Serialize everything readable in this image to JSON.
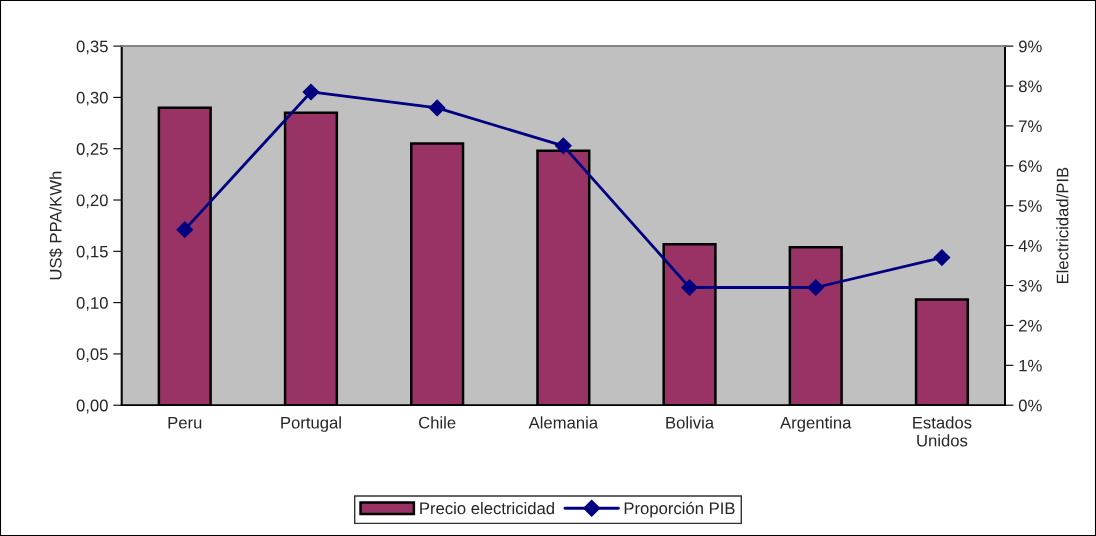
{
  "chart_data": {
    "type": "bar",
    "categories": [
      "Peru",
      "Portugal",
      "Chile",
      "Alemania",
      "Bolivia",
      "Argentina",
      "Estados\nUnidos"
    ],
    "series": [
      {
        "name": "Precio electricidad",
        "color": "#993366",
        "values": [
          0.29,
          0.285,
          0.255,
          0.248,
          0.157,
          0.154,
          0.103
        ]
      },
      {
        "name": "Proporción PIB",
        "type": "line",
        "axis": "y2",
        "color": "#000080",
        "marker": "diamond",
        "values": [
          4.4,
          7.85,
          7.45,
          6.5,
          2.95,
          2.95,
          3.7
        ]
      }
    ],
    "ylabel": "US$ PPA/KWh",
    "y2label": "Electricidad/PIB",
    "ylim": [
      0,
      0.35
    ],
    "yticks": [
      {
        "value": 0,
        "label": "0,00"
      },
      {
        "value": 0.05,
        "label": "0,05"
      },
      {
        "value": 0.1,
        "label": "0,10"
      },
      {
        "value": 0.15,
        "label": "0,15"
      },
      {
        "value": 0.2,
        "label": "0,20"
      },
      {
        "value": 0.25,
        "label": "0,25"
      },
      {
        "value": 0.3,
        "label": "0,30"
      },
      {
        "value": 0.35,
        "label": "0,35"
      }
    ],
    "y2lim": [
      0,
      9
    ],
    "y2ticks": [
      {
        "value": 0,
        "label": "0%"
      },
      {
        "value": 1,
        "label": "1%"
      },
      {
        "value": 2,
        "label": "2%"
      },
      {
        "value": 3,
        "label": "3%"
      },
      {
        "value": 4,
        "label": "4%"
      },
      {
        "value": 5,
        "label": "5%"
      },
      {
        "value": 6,
        "label": "6%"
      },
      {
        "value": 7,
        "label": "7%"
      },
      {
        "value": 8,
        "label": "8%"
      },
      {
        "value": 9,
        "label": "9%"
      }
    ],
    "legend": "bottom"
  }
}
